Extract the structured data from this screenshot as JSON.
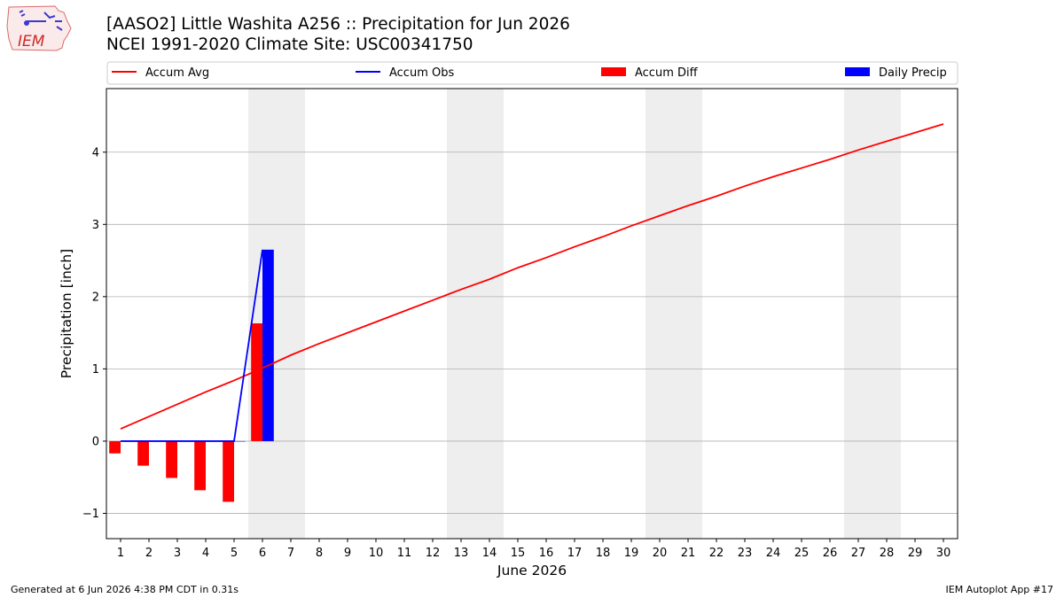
{
  "logo": {
    "text": "IEM"
  },
  "header": {
    "title_line1": "[AASO2] Little Washita A256 :: Precipitation for Jun 2026",
    "title_line2": "NCEI 1991-2020 Climate Site: USC00341750"
  },
  "footer": {
    "left": "Generated at 6 Jun 2026 4:38 PM CDT in 0.31s",
    "right": "IEM Autoplot App #17"
  },
  "colors": {
    "accum_avg": "#ff0000",
    "accum_obs": "#0000ff",
    "accum_diff": "#ff0000",
    "daily_precip": "#0000ff",
    "weekend_shade": "#eeeeee",
    "grid": "#b0b0b0"
  },
  "chart_data": {
    "type": "bar",
    "xlabel": "June 2026",
    "ylabel": "Precipitation [inch]",
    "x": [
      1,
      2,
      3,
      4,
      5,
      6,
      7,
      8,
      9,
      10,
      11,
      12,
      13,
      14,
      15,
      16,
      17,
      18,
      19,
      20,
      21,
      22,
      23,
      24,
      25,
      26,
      27,
      28,
      29,
      30
    ],
    "xlim": [
      0.5,
      30.5
    ],
    "ylim": [
      -1.35,
      4.88
    ],
    "yticks": [
      -1,
      0,
      1,
      2,
      3,
      4
    ],
    "ytick_labels": [
      "−1",
      "0",
      "1",
      "2",
      "3",
      "4"
    ],
    "grid": "horizontal",
    "legend_position": "top",
    "weekend_shading": [
      [
        5.5,
        7.5
      ],
      [
        12.5,
        14.5
      ],
      [
        19.5,
        21.5
      ],
      [
        26.5,
        28.5
      ]
    ],
    "series": [
      {
        "name": "Accum Avg",
        "kind": "line",
        "values": [
          0.17,
          0.34,
          0.51,
          0.68,
          0.84,
          1.01,
          1.19,
          1.35,
          1.5,
          1.65,
          1.8,
          1.95,
          2.1,
          2.24,
          2.4,
          2.54,
          2.69,
          2.83,
          2.98,
          3.12,
          3.26,
          3.39,
          3.53,
          3.66,
          3.78,
          3.9,
          4.03,
          4.15,
          4.27,
          4.39
        ]
      },
      {
        "name": "Accum Obs",
        "kind": "line",
        "x": [
          1,
          2,
          3,
          4,
          5,
          6
        ],
        "values": [
          0,
          0,
          0,
          0,
          0,
          2.65
        ]
      },
      {
        "name": "Accum Diff",
        "kind": "bar",
        "x": [
          1,
          2,
          3,
          4,
          5,
          6
        ],
        "values": [
          -0.17,
          -0.34,
          -0.51,
          -0.68,
          -0.84,
          1.63
        ]
      },
      {
        "name": "Daily Precip",
        "kind": "bar",
        "x": [
          1,
          2,
          3,
          4,
          5,
          6
        ],
        "values": [
          0,
          0,
          0,
          0,
          0,
          2.65
        ]
      }
    ]
  }
}
